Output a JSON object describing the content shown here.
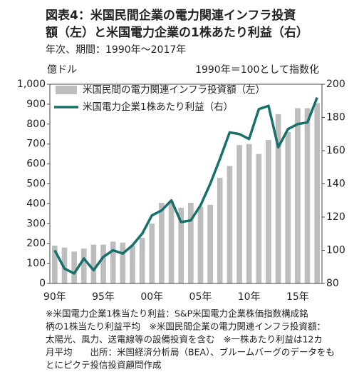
{
  "chart_data": {
    "type": "combo",
    "title": [
      "図表4：米国民間企業の電力関連インフラ投資",
      "額（左）と米国電力企業の1株あたり利益（右）"
    ],
    "subtitle": "年次、期間：1990年～2017年",
    "y_label": "億ドル",
    "y2_label": "1990年＝100として指数化",
    "categories": [
      "90年",
      null,
      null,
      null,
      null,
      "95年",
      null,
      null,
      null,
      null,
      "00年",
      null,
      null,
      null,
      null,
      "05年",
      null,
      null,
      null,
      null,
      "10年",
      null,
      null,
      null,
      null,
      "15年",
      null,
      null
    ],
    "series": [
      {
        "name": "米国民間の電力関連インフラ投資額（左）",
        "type": "bar",
        "color": "#bdbdbd",
        "values": [
          190,
          180,
          160,
          175,
          195,
          195,
          210,
          205,
          190,
          230,
          300,
          405,
          415,
          380,
          405,
          385,
          395,
          530,
          590,
          695,
          700,
          650,
          720,
          850,
          760,
          880,
          880,
          905
        ]
      },
      {
        "name": "米国電力企業1株あたり利益（右）",
        "type": "line",
        "axis": "y2",
        "color": "#17706c",
        "values": [
          100,
          89,
          86,
          95,
          88,
          96,
          100,
          98,
          103,
          110,
          121,
          124,
          130,
          117,
          118,
          127,
          140,
          155,
          171,
          170,
          167,
          185,
          187,
          162,
          173,
          176,
          177,
          192
        ]
      }
    ],
    "ylim": [
      0,
      1000
    ],
    "yticks": [
      0,
      100,
      200,
      300,
      400,
      500,
      600,
      700,
      800,
      900,
      {
        "value": 1000,
        "label": "1,000"
      }
    ],
    "y2lim": [
      80,
      200
    ],
    "y2ticks": [
      80,
      100,
      120,
      140,
      160,
      180,
      200
    ],
    "legend": "upper left"
  },
  "notes": [
    "※米国電力企業1株当たり利益：S&P米国電力企業株価指数構成銘",
    "柄の1株当たり利益平均　※米国民間企業の電力関連インフラ投資額：",
    "太陽光、風力、送電線等の設備投資を含む　※一株あたり利益は12カ",
    "月平均　　出所：米国経済分析局（BEA）、ブルームバーグのデータをも",
    "とにピクテ投信投資顧問作成"
  ]
}
